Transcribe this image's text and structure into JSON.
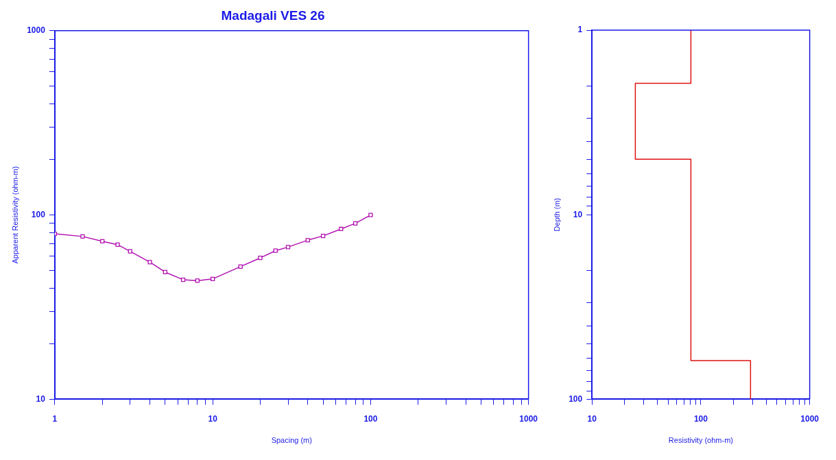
{
  "chart_data": [
    {
      "type": "line",
      "title": "Madagali VES 26",
      "xlabel": "Spacing (m)",
      "ylabel": "Apparent Resistivity (ohm-m)",
      "log": "xy",
      "grid": false,
      "legend": false,
      "marker": "square",
      "line_style": "solid",
      "xlim": [
        1,
        1000
      ],
      "ylim": [
        10,
        1000
      ],
      "xticks": [
        1,
        {
          "value": 2,
          "label": null
        },
        {
          "value": 3,
          "label": null
        },
        {
          "value": 4,
          "label": null
        },
        {
          "value": 5,
          "label": null
        },
        {
          "value": 6,
          "label": null
        },
        {
          "value": 7,
          "label": null
        },
        {
          "value": 8,
          "label": null
        },
        {
          "value": 9,
          "label": null
        },
        10,
        {
          "value": 20,
          "label": null
        },
        {
          "value": 30,
          "label": null
        },
        {
          "value": 40,
          "label": null
        },
        {
          "value": 50,
          "label": null
        },
        {
          "value": 60,
          "label": null
        },
        {
          "value": 70,
          "label": null
        },
        {
          "value": 80,
          "label": null
        },
        {
          "value": 90,
          "label": null
        },
        100,
        {
          "value": 200,
          "label": null
        },
        {
          "value": 300,
          "label": null
        },
        {
          "value": 400,
          "label": null
        },
        {
          "value": 500,
          "label": null
        },
        {
          "value": 600,
          "label": null
        },
        {
          "value": 700,
          "label": null
        },
        {
          "value": 800,
          "label": null
        },
        {
          "value": 900,
          "label": null
        },
        1000
      ],
      "yticks": [
        10,
        {
          "value": 20,
          "label": null
        },
        {
          "value": 30,
          "label": null
        },
        {
          "value": 40,
          "label": null
        },
        {
          "value": 50,
          "label": null
        },
        {
          "value": 60,
          "label": null
        },
        {
          "value": 70,
          "label": null
        },
        {
          "value": 80,
          "label": null
        },
        {
          "value": 90,
          "label": null
        },
        100,
        {
          "value": 200,
          "label": null
        },
        {
          "value": 300,
          "label": null
        },
        {
          "value": 400,
          "label": null
        },
        {
          "value": 500,
          "label": null
        },
        {
          "value": 600,
          "label": null
        },
        {
          "value": 700,
          "label": null
        },
        {
          "value": 800,
          "label": null
        },
        {
          "value": 900,
          "label": null
        },
        1000
      ],
      "series": [
        {
          "color": "#b010b0",
          "x": [
            1,
            1.5,
            2,
            2.5,
            3,
            4,
            5,
            6.5,
            8,
            10,
            15,
            20,
            25,
            30,
            40,
            50,
            65,
            80,
            100
          ],
          "values": [
            79,
            76.5,
            72,
            69,
            63.5,
            55.5,
            49,
            44.5,
            44,
            45,
            52.5,
            58.5,
            64,
            67,
            73,
            77,
            84,
            90,
            100
          ]
        }
      ]
    },
    {
      "type": "line",
      "xlabel": "Resistivity (ohm-m)",
      "ylabel": "Depth (m)",
      "log": "xy",
      "grid": false,
      "legend": false,
      "marker": "none",
      "line_style": "solid",
      "xlim": [
        10,
        1000
      ],
      "ylim": [
        100,
        1
      ],
      "xticks": [
        10,
        {
          "value": 20,
          "label": null
        },
        {
          "value": 30,
          "label": null
        },
        {
          "value": 40,
          "label": null
        },
        {
          "value": 50,
          "label": null
        },
        {
          "value": 60,
          "label": null
        },
        {
          "value": 70,
          "label": null
        },
        {
          "value": 80,
          "label": null
        },
        {
          "value": 90,
          "label": null
        },
        100,
        {
          "value": 200,
          "label": null
        },
        {
          "value": 300,
          "label": null
        },
        {
          "value": 400,
          "label": null
        },
        {
          "value": 500,
          "label": null
        },
        {
          "value": 600,
          "label": null
        },
        {
          "value": 700,
          "label": null
        },
        {
          "value": 800,
          "label": null
        },
        {
          "value": 900,
          "label": null
        },
        1000
      ],
      "yticks": [
        1,
        {
          "value": 2,
          "label": null
        },
        {
          "value": 3,
          "label": null
        },
        {
          "value": 4,
          "label": null
        },
        {
          "value": 5,
          "label": null
        },
        {
          "value": 6,
          "label": null
        },
        {
          "value": 7,
          "label": null
        },
        {
          "value": 8,
          "label": null
        },
        {
          "value": 9,
          "label": null
        },
        10,
        {
          "value": 20,
          "label": null
        },
        {
          "value": 30,
          "label": null
        },
        {
          "value": 40,
          "label": null
        },
        {
          "value": 50,
          "label": null
        },
        {
          "value": 60,
          "label": null
        },
        {
          "value": 70,
          "label": null
        },
        {
          "value": 80,
          "label": null
        },
        {
          "value": 90,
          "label": null
        },
        100
      ],
      "series": [
        {
          "color": "#e01010",
          "x": [
            81,
            81,
            25,
            25,
            81,
            81,
            286,
            286
          ],
          "values": [
            1,
            1.94,
            1.94,
            5,
            5,
            61.7,
            61.7,
            100
          ]
        }
      ]
    }
  ]
}
